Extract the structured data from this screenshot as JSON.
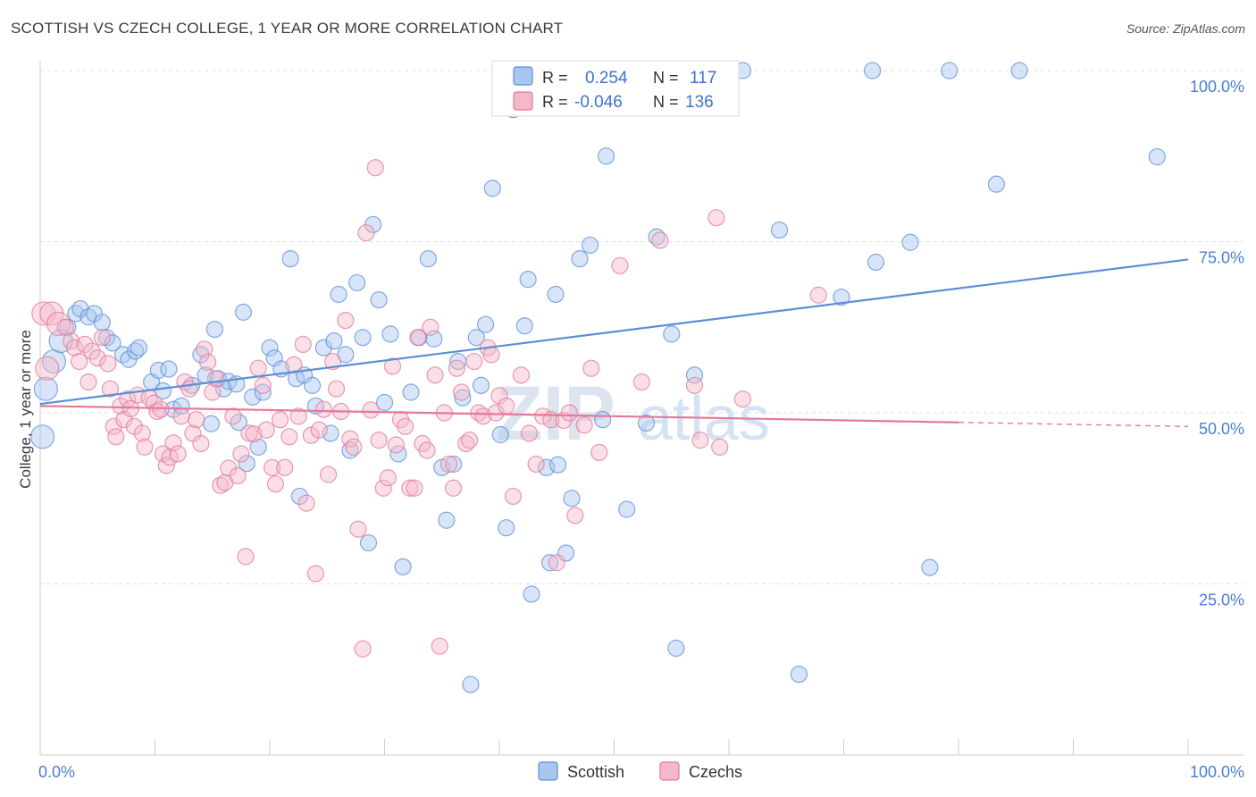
{
  "title": "SCOTTISH VS CZECH COLLEGE, 1 YEAR OR MORE CORRELATION CHART",
  "source": "Source: ZipAtlas.com",
  "watermark": {
    "part1": "ZIP",
    "part2": "atlas"
  },
  "legend_stats": [
    {
      "r_label": "R =",
      "r_value": "0.254",
      "n_label": "N =",
      "n_value": "117",
      "color": "#a9c6ef",
      "stroke": "#5b8fd6"
    },
    {
      "r_label": "R =",
      "r_value": "-0.046",
      "n_label": "N =",
      "n_value": "136",
      "color": "#f5b8c9",
      "stroke": "#e27a9b"
    }
  ],
  "bottom_legend": [
    {
      "label": "Scottish",
      "color": "#a9c6ef",
      "stroke": "#5b8fd6"
    },
    {
      "label": "Czechs",
      "color": "#f5b8c9",
      "stroke": "#e27a9b"
    }
  ],
  "chart_data": {
    "type": "scatter",
    "title": "SCOTTISH VS CZECH COLLEGE, 1 YEAR OR MORE CORRELATION CHART",
    "xlabel": "",
    "ylabel": "College, 1 year or more",
    "xlim": [
      0,
      100
    ],
    "ylim": [
      0,
      100
    ],
    "x_tick_labels": [
      "0.0%",
      "100.0%"
    ],
    "y_tick_labels": [
      "100.0%",
      "75.0%",
      "50.0%",
      "25.0%"
    ],
    "y_ticks": [
      100,
      75,
      50,
      25
    ],
    "grid": "horizontal dashed",
    "legend_placement": "top-center",
    "series": [
      {
        "name": "Scottish",
        "color": "#5b8fd6",
        "fill": "#a9c6ef",
        "trend": {
          "x0": 0,
          "y0": 51.3,
          "x1": 100,
          "y1": 72.4
        },
        "points": [
          [
            0.2,
            46.5
          ],
          [
            0.5,
            53.5
          ],
          [
            1.2,
            57.5
          ],
          [
            1.8,
            60.5
          ],
          [
            2.4,
            62.5
          ],
          [
            3.1,
            64.5
          ],
          [
            3.5,
            65.2
          ],
          [
            4.2,
            64
          ],
          [
            4.7,
            64.5
          ],
          [
            5.4,
            63.2
          ],
          [
            5.8,
            61
          ],
          [
            6.3,
            60.2
          ],
          [
            7.2,
            58.5
          ],
          [
            7.7,
            57.8
          ],
          [
            8.3,
            59
          ],
          [
            8.6,
            59.5
          ],
          [
            9.7,
            54.5
          ],
          [
            10.3,
            56.2
          ],
          [
            10.7,
            53.2
          ],
          [
            11.2,
            56.4
          ],
          [
            11.6,
            50.5
          ],
          [
            12.3,
            51
          ],
          [
            13.2,
            54
          ],
          [
            14,
            58.5
          ],
          [
            14.4,
            55.5
          ],
          [
            14.9,
            48.4
          ],
          [
            15.2,
            62.2
          ],
          [
            15.5,
            55
          ],
          [
            16,
            53.5
          ],
          [
            16.4,
            54.6
          ],
          [
            17.1,
            54.2
          ],
          [
            17.3,
            48.6
          ],
          [
            17.7,
            64.7
          ],
          [
            18,
            42.6
          ],
          [
            18.5,
            52.3
          ],
          [
            19,
            45
          ],
          [
            19.4,
            53
          ],
          [
            20,
            59.5
          ],
          [
            20.4,
            58
          ],
          [
            21,
            56.4
          ],
          [
            21.8,
            72.5
          ],
          [
            22.3,
            55
          ],
          [
            22.6,
            37.8
          ],
          [
            23,
            55.5
          ],
          [
            23.7,
            54
          ],
          [
            24,
            51
          ],
          [
            24.7,
            59.5
          ],
          [
            25.3,
            47
          ],
          [
            25.6,
            60.5
          ],
          [
            26,
            67.3
          ],
          [
            26.6,
            58.5
          ],
          [
            27,
            44.5
          ],
          [
            27.6,
            69
          ],
          [
            28.1,
            61
          ],
          [
            28.6,
            31
          ],
          [
            29,
            77.5
          ],
          [
            29.5,
            66.5
          ],
          [
            30,
            51.5
          ],
          [
            30.5,
            61.5
          ],
          [
            31.2,
            44
          ],
          [
            31.6,
            27.5
          ],
          [
            32.3,
            53
          ],
          [
            33,
            61
          ],
          [
            33.8,
            72.5
          ],
          [
            34.3,
            60.8
          ],
          [
            35,
            42
          ],
          [
            35.4,
            34.3
          ],
          [
            36,
            42.5
          ],
          [
            36.4,
            57.5
          ],
          [
            36.8,
            52.2
          ],
          [
            37.5,
            10.3
          ],
          [
            38,
            61
          ],
          [
            38.4,
            54
          ],
          [
            38.8,
            62.9
          ],
          [
            39.4,
            82.8
          ],
          [
            40.1,
            46.8
          ],
          [
            40.6,
            33.2
          ],
          [
            41.2,
            94.3
          ],
          [
            42.2,
            62.7
          ],
          [
            42.5,
            69.5
          ],
          [
            42.8,
            23.5
          ],
          [
            44.1,
            42
          ],
          [
            44.4,
            28.1
          ],
          [
            44.9,
            67.3
          ],
          [
            45.1,
            42.4
          ],
          [
            45.8,
            29.5
          ],
          [
            46.3,
            37.5
          ],
          [
            47,
            72.5
          ],
          [
            47.9,
            74.5
          ],
          [
            49,
            49
          ],
          [
            49.3,
            87.5
          ],
          [
            51.1,
            35.9
          ],
          [
            52.8,
            48.5
          ],
          [
            53.7,
            75.7
          ],
          [
            55,
            61.5
          ],
          [
            55.4,
            15.6
          ],
          [
            57,
            55.5
          ],
          [
            59.7,
            100
          ],
          [
            61.2,
            100
          ],
          [
            64.4,
            76.7
          ],
          [
            66.1,
            11.8
          ],
          [
            69.8,
            66.9
          ],
          [
            72.5,
            100
          ],
          [
            72.8,
            72
          ],
          [
            75.8,
            74.9
          ],
          [
            77.5,
            27.4
          ],
          [
            79.2,
            100
          ],
          [
            83.3,
            83.4
          ],
          [
            85.3,
            100
          ],
          [
            97.3,
            87.4
          ]
        ]
      },
      {
        "name": "Czechs",
        "color": "#e27a9b",
        "fill": "#f5b8c9",
        "trend": {
          "x0": 0,
          "y0": 51,
          "x1": 80,
          "y1": 48.6
        },
        "points": [
          [
            0.3,
            64.5
          ],
          [
            0.6,
            56.5
          ],
          [
            1,
            64.5
          ],
          [
            1.6,
            63
          ],
          [
            2.2,
            62.5
          ],
          [
            2.7,
            60.5
          ],
          [
            3,
            59.5
          ],
          [
            3.4,
            57.5
          ],
          [
            3.9,
            60
          ],
          [
            4.2,
            54.5
          ],
          [
            4.5,
            59
          ],
          [
            5,
            58
          ],
          [
            5.4,
            61
          ],
          [
            5.9,
            57.2
          ],
          [
            6.1,
            53.5
          ],
          [
            6.4,
            48
          ],
          [
            6.6,
            46.5
          ],
          [
            7,
            51
          ],
          [
            7.3,
            49
          ],
          [
            7.6,
            52
          ],
          [
            7.9,
            50.6
          ],
          [
            8.2,
            48
          ],
          [
            8.5,
            52.6
          ],
          [
            8.9,
            47
          ],
          [
            9.1,
            45
          ],
          [
            9.5,
            52.2
          ],
          [
            9.9,
            51.4
          ],
          [
            10.2,
            50.2
          ],
          [
            10.5,
            50.5
          ],
          [
            10.7,
            44
          ],
          [
            11,
            42.3
          ],
          [
            11.3,
            43.5
          ],
          [
            11.6,
            45.6
          ],
          [
            12,
            44
          ],
          [
            12.3,
            49.5
          ],
          [
            12.6,
            54.5
          ],
          [
            13,
            53.5
          ],
          [
            13.3,
            47
          ],
          [
            13.6,
            49
          ],
          [
            14,
            45.5
          ],
          [
            14.3,
            59.3
          ],
          [
            14.6,
            57.4
          ],
          [
            15,
            53
          ],
          [
            15.3,
            55
          ],
          [
            15.7,
            39.4
          ],
          [
            16.1,
            39.8
          ],
          [
            16.4,
            41.9
          ],
          [
            16.8,
            49.5
          ],
          [
            17.2,
            40.8
          ],
          [
            17.5,
            44
          ],
          [
            17.9,
            29
          ],
          [
            18.2,
            47
          ],
          [
            18.6,
            46.9
          ],
          [
            19,
            56.5
          ],
          [
            19.4,
            54
          ],
          [
            19.7,
            47.5
          ],
          [
            20.2,
            42
          ],
          [
            20.5,
            39.6
          ],
          [
            20.9,
            49
          ],
          [
            21.3,
            42
          ],
          [
            21.7,
            46.5
          ],
          [
            22.1,
            57
          ],
          [
            22.5,
            49.5
          ],
          [
            22.9,
            60
          ],
          [
            23.2,
            36.8
          ],
          [
            23.6,
            46.7
          ],
          [
            24,
            26.5
          ],
          [
            24.3,
            47.5
          ],
          [
            24.7,
            50.5
          ],
          [
            25.1,
            41
          ],
          [
            25.5,
            57.5
          ],
          [
            25.8,
            53.5
          ],
          [
            26.2,
            50.2
          ],
          [
            26.6,
            63.5
          ],
          [
            27,
            46.2
          ],
          [
            27.3,
            45
          ],
          [
            27.7,
            33
          ],
          [
            28.1,
            15.5
          ],
          [
            28.4,
            76.3
          ],
          [
            28.8,
            50.4
          ],
          [
            29.2,
            85.8
          ],
          [
            29.5,
            46
          ],
          [
            29.9,
            39
          ],
          [
            30.3,
            40.5
          ],
          [
            30.7,
            56.8
          ],
          [
            31,
            45.3
          ],
          [
            31.4,
            49
          ],
          [
            31.8,
            48
          ],
          [
            32.2,
            39
          ],
          [
            32.6,
            39
          ],
          [
            32.9,
            61
          ],
          [
            33.3,
            45.5
          ],
          [
            33.7,
            44.5
          ],
          [
            34,
            62.5
          ],
          [
            34.4,
            55.5
          ],
          [
            34.8,
            15.9
          ],
          [
            35.2,
            50
          ],
          [
            35.6,
            42.5
          ],
          [
            36,
            39
          ],
          [
            36.3,
            56.5
          ],
          [
            36.7,
            53
          ],
          [
            37.1,
            45.5
          ],
          [
            37.4,
            46
          ],
          [
            37.8,
            57.5
          ],
          [
            38.2,
            50
          ],
          [
            38.6,
            49.5
          ],
          [
            39,
            59.5
          ],
          [
            39.3,
            58.5
          ],
          [
            39.7,
            50
          ],
          [
            40,
            52.5
          ],
          [
            40.6,
            51
          ],
          [
            41.2,
            37.8
          ],
          [
            41.9,
            55.5
          ],
          [
            42.6,
            47
          ],
          [
            43.2,
            42.5
          ],
          [
            43.8,
            49.5
          ],
          [
            44.5,
            49
          ],
          [
            45,
            28.1
          ],
          [
            45.6,
            48.9
          ],
          [
            46.1,
            50
          ],
          [
            46.6,
            35
          ],
          [
            47.4,
            48.2
          ],
          [
            48,
            56.5
          ],
          [
            48.7,
            44.2
          ],
          [
            50.5,
            71.5
          ],
          [
            52.4,
            54.5
          ],
          [
            54,
            75.2
          ],
          [
            57,
            54
          ],
          [
            57.5,
            46
          ],
          [
            58.9,
            78.5
          ],
          [
            59.2,
            45
          ],
          [
            61.2,
            52
          ],
          [
            67.8,
            67.2
          ]
        ]
      }
    ]
  }
}
